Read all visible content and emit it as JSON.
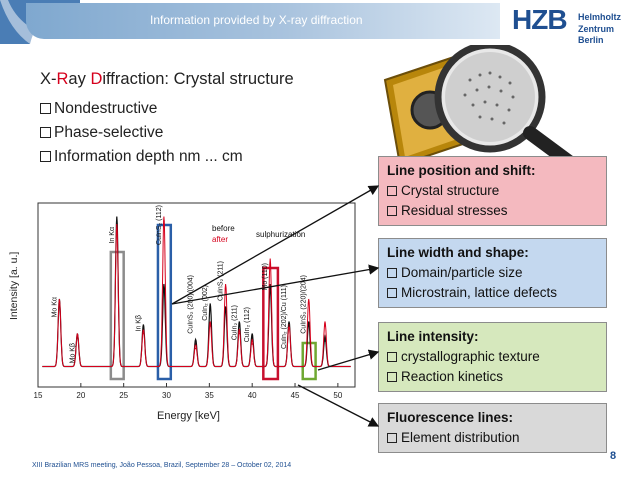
{
  "header": {
    "title": "Information provided by X-ray diffraction",
    "logo": {
      "main": "HZB",
      "line1": "Helmholtz",
      "line2": "Zentrum Berlin"
    }
  },
  "title": {
    "p1": "X-",
    "p2": "R",
    "p3": "ay ",
    "p4": "D",
    "p5": "iffraction: Crystal structure"
  },
  "bullets": [
    "Nondestructive",
    "Phase-selective",
    "Information depth nm ... cm"
  ],
  "plot": {
    "ylabel": "Intensity [a. u.]",
    "xlabel": "Energy [keV]",
    "xticks": [
      "15",
      "20",
      "25",
      "30",
      "35",
      "40",
      "45",
      "50"
    ],
    "legend_before": "before",
    "legend_after": "after",
    "annotation": "sulphurization",
    "peak_labels": [
      "Mo Kα",
      "Mo Kβ",
      "In Kα",
      "In Kβ",
      "CuInS₂ (112)",
      "CuInS₂ (200)/(004)",
      "CuIn₂ (002)",
      "CuInS₂ (211)",
      "CuIn₂ (211)",
      "CuIn₂ (112)",
      "Mo (110)",
      "CuIn₂ (202)/Cu (111)",
      "CuInS₂ (220)/(204)"
    ],
    "colors": {
      "before": "#111111",
      "after": "#d6001c",
      "box_gray": "#8c8c8c",
      "box_blue": "#2a5fa8",
      "box_red": "#c8102e",
      "box_green": "#6fa832"
    }
  },
  "chart_data": {
    "type": "line",
    "xlabel": "Energy [keV]",
    "ylabel": "Intensity [a. u.]",
    "xlim": [
      15,
      52
    ],
    "series": [
      {
        "name": "before",
        "x": [
          17.5,
          19.6,
          24.2,
          27.3,
          29.7,
          33.4,
          35.1,
          36.9,
          38.5,
          40.0,
          42.1,
          44.3,
          46.6,
          48.5
        ],
        "y": [
          0.45,
          0.22,
          1.0,
          0.28,
          0.55,
          0.18,
          0.42,
          0.4,
          0.3,
          0.22,
          0.55,
          0.3,
          0.3,
          0.2
        ]
      },
      {
        "name": "after",
        "x": [
          17.5,
          19.6,
          24.2,
          27.3,
          29.7,
          33.4,
          35.1,
          36.9,
          38.5,
          40.0,
          42.1,
          44.3,
          46.6,
          48.5
        ],
        "y": [
          0.45,
          0.22,
          0.95,
          0.25,
          1.0,
          0.15,
          0.3,
          0.55,
          0.25,
          0.18,
          0.72,
          0.28,
          0.45,
          0.3
        ]
      }
    ]
  },
  "callouts": [
    {
      "heading": "Line position and shift:",
      "items": [
        "Crystal structure",
        "Residual stresses"
      ]
    },
    {
      "heading": "Line width and shape:",
      "items": [
        "Domain/particle size",
        "Microstrain, lattice defects"
      ]
    },
    {
      "heading": "Line intensity:",
      "items": [
        "crystallographic texture",
        "Reaction kinetics"
      ]
    },
    {
      "heading": "Fluorescence lines:",
      "items": [
        "Element distribution"
      ]
    }
  ],
  "footer": "XIII Brazilian MRS meeting, João Pessoa, Brazil, September 28 – October 02, 2014",
  "page_number": "8"
}
